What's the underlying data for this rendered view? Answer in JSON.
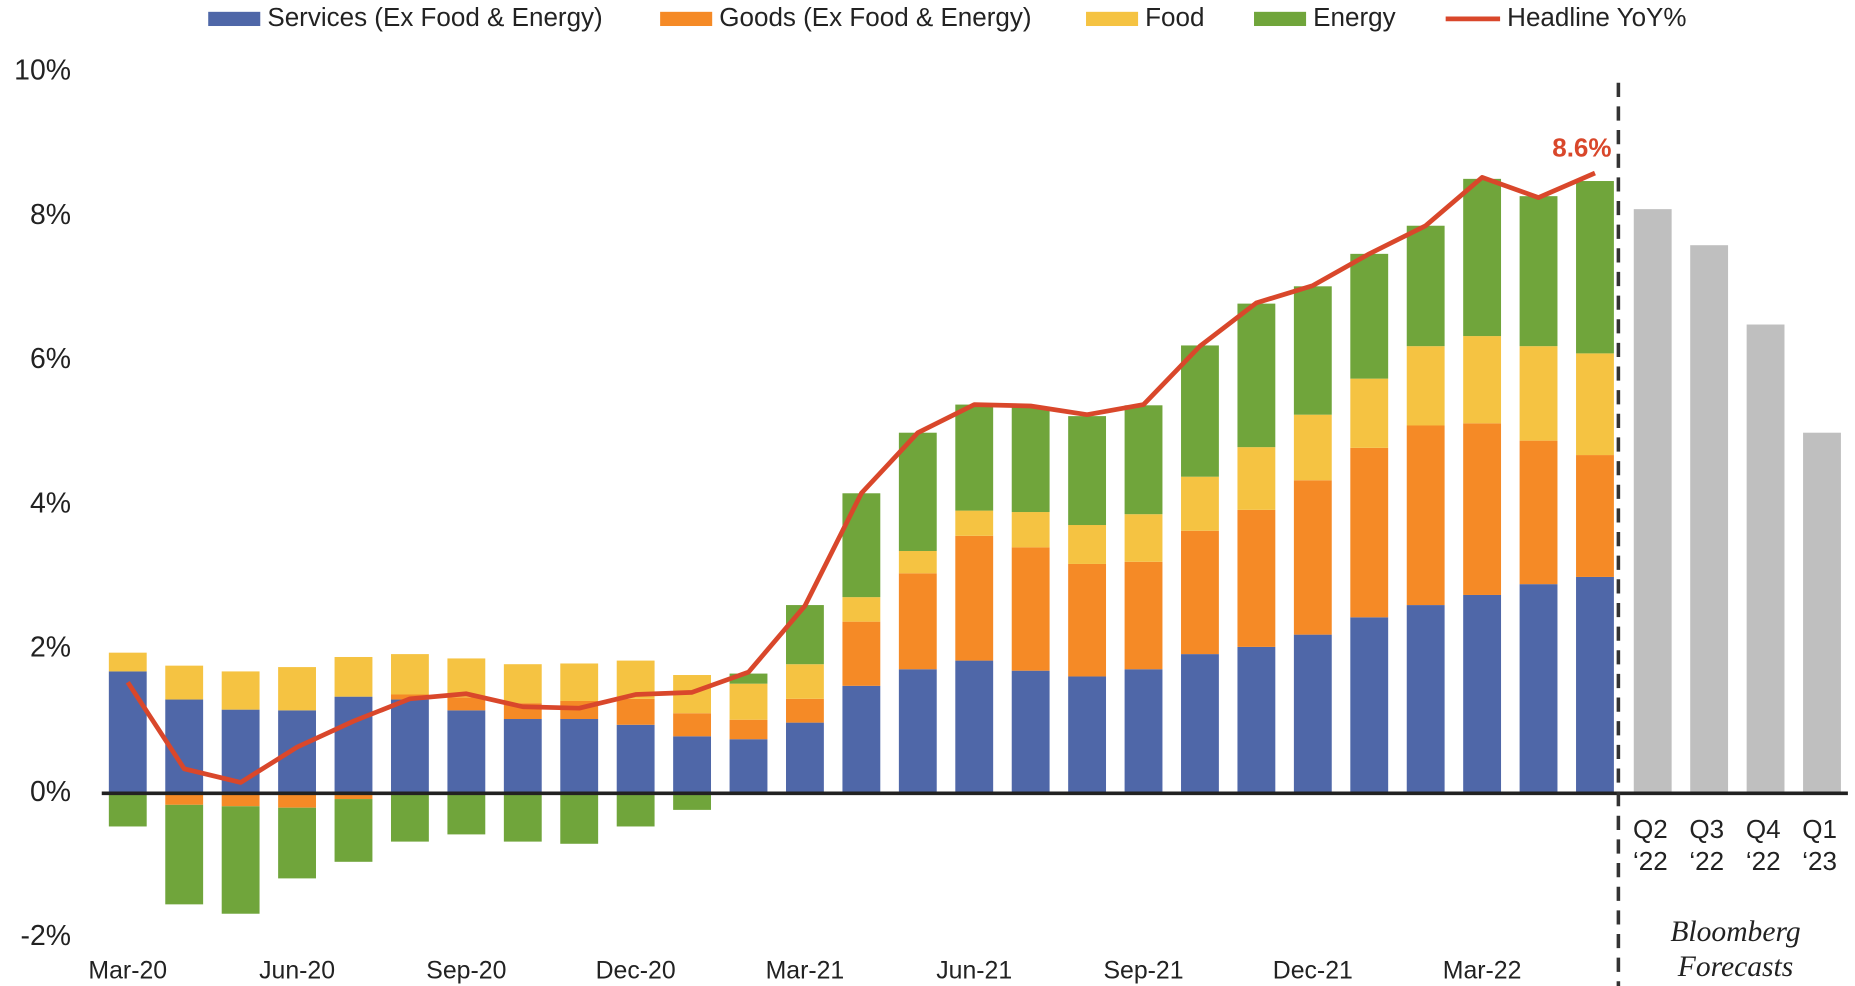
{
  "chart_data": {
    "type": "bar",
    "stacked": true,
    "categories": [
      "Mar-20",
      null,
      null,
      "Jun-20",
      null,
      null,
      "Sep-20",
      null,
      null,
      "Dec-20",
      null,
      null,
      "Mar-21",
      null,
      null,
      "Jun-21",
      null,
      null,
      "Sep-21",
      null,
      null,
      "Dec-21",
      null,
      null,
      "Mar-22",
      null,
      null
    ],
    "series": [
      {
        "name": "Services (Ex Food & Energy)",
        "color": "#4f67a8",
        "type": "bar",
        "values": [
          1.69,
          1.3,
          1.16,
          1.15,
          1.34,
          1.3,
          1.15,
          1.03,
          1.03,
          0.95,
          0.79,
          0.75,
          0.98,
          1.49,
          1.72,
          1.84,
          1.7,
          1.62,
          1.72,
          1.93,
          2.03,
          2.2,
          2.44,
          2.61,
          2.75,
          2.9,
          3.0
        ]
      },
      {
        "name": "Goods (Ex Food & Energy)",
        "color": "#f58a26",
        "type": "bar",
        "values": [
          0,
          -0.16,
          -0.18,
          -0.2,
          -0.08,
          0.07,
          0.18,
          0.22,
          0.25,
          0.36,
          0.32,
          0.27,
          0.33,
          0.89,
          1.33,
          1.73,
          1.71,
          1.56,
          1.49,
          1.71,
          1.9,
          2.14,
          2.35,
          2.49,
          2.38,
          1.99,
          1.69
        ]
      },
      {
        "name": "Food",
        "color": "#f5c342",
        "type": "bar",
        "values": [
          0.26,
          0.47,
          0.53,
          0.6,
          0.55,
          0.56,
          0.54,
          0.54,
          0.52,
          0.53,
          0.53,
          0.5,
          0.48,
          0.34,
          0.31,
          0.35,
          0.49,
          0.54,
          0.66,
          0.75,
          0.87,
          0.91,
          0.96,
          1.1,
          1.21,
          1.31,
          1.41
        ]
      },
      {
        "name": "Energy",
        "color": "#70a53b",
        "type": "bar",
        "values": [
          -0.46,
          -1.38,
          -1.49,
          -0.98,
          -0.87,
          -0.67,
          -0.57,
          -0.67,
          -0.7,
          -0.46,
          -0.23,
          0.14,
          0.82,
          1.44,
          1.64,
          1.47,
          1.46,
          1.51,
          1.51,
          1.82,
          1.99,
          1.78,
          1.73,
          1.67,
          2.18,
          2.08,
          2.39
        ]
      },
      {
        "name": "Headline YoY%",
        "color": "#d9472b",
        "type": "line",
        "values": [
          1.54,
          0.34,
          0.15,
          0.64,
          1.0,
          1.31,
          1.38,
          1.2,
          1.18,
          1.37,
          1.4,
          1.68,
          2.6,
          4.16,
          5.0,
          5.39,
          5.37,
          5.25,
          5.39,
          6.2,
          6.8,
          7.04,
          7.48,
          7.87,
          8.54,
          8.26,
          8.6
        ],
        "value_labels": [
          null,
          null,
          null,
          null,
          null,
          null,
          null,
          null,
          null,
          null,
          null,
          null,
          null,
          null,
          null,
          null,
          null,
          null,
          null,
          null,
          null,
          null,
          null,
          null,
          null,
          null,
          "8.6%"
        ]
      }
    ],
    "forecast": {
      "label": [
        "Bloomberg",
        "Forecasts"
      ],
      "categories": [
        [
          "Q2",
          "‘22"
        ],
        [
          "Q3",
          "‘22"
        ],
        [
          "Q4",
          "‘22"
        ],
        [
          "Q1",
          "‘23"
        ]
      ],
      "values": [
        8.1,
        7.6,
        6.5,
        5.0
      ],
      "color": "#bfbfbf"
    },
    "ylim": [
      -2,
      10
    ],
    "yticks": [
      {
        "value": -2,
        "label": "-2%"
      },
      {
        "value": 0,
        "label": "0%"
      },
      {
        "value": 2,
        "label": "2%"
      },
      {
        "value": 4,
        "label": "4%"
      },
      {
        "value": 6,
        "label": "6%"
      },
      {
        "value": 8,
        "label": "8%"
      },
      {
        "value": 10,
        "label": "10%"
      }
    ],
    "legend": "top"
  }
}
